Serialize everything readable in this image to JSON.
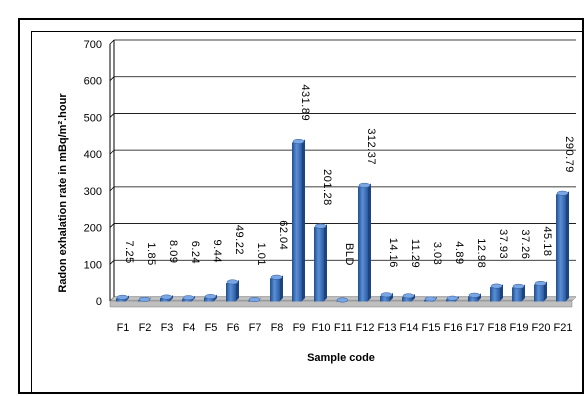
{
  "chart_data": {
    "type": "bar",
    "title": "",
    "xlabel": "Sample code",
    "ylabel": "Radon exhalation rate in  mBq/m².hour",
    "ylim": [
      0,
      700
    ],
    "yticks": [
      0,
      100,
      200,
      300,
      400,
      500,
      600,
      700
    ],
    "grid": true,
    "legend": "none",
    "bar_color": "#3a6fb5",
    "categories": [
      "F1",
      "F2",
      "F3",
      "F4",
      "F5",
      "F6",
      "F7",
      "F8",
      "F9",
      "F10",
      "F11",
      "F12",
      "F13",
      "F14",
      "F15",
      "F16",
      "F17",
      "F18",
      "F19",
      "F20",
      "F21"
    ],
    "values": [
      7.25,
      1.85,
      8.09,
      6.24,
      9.44,
      49.22,
      1.01,
      62.04,
      431.89,
      201.28,
      0,
      312.37,
      14.16,
      11.29,
      3.03,
      4.89,
      12.98,
      37.93,
      37.26,
      45.18,
      290.79
    ],
    "data_labels": [
      "7.25",
      "1.85",
      "8.09",
      "6.24",
      "9.44",
      "49.22",
      "1.01",
      "62.04",
      "431.89",
      "201.28",
      "BLD",
      "312.37",
      "14.16",
      "11.29",
      "3.03",
      "4.89",
      "12.98",
      "37.93",
      "37.26",
      "45.18",
      "290.79"
    ]
  }
}
